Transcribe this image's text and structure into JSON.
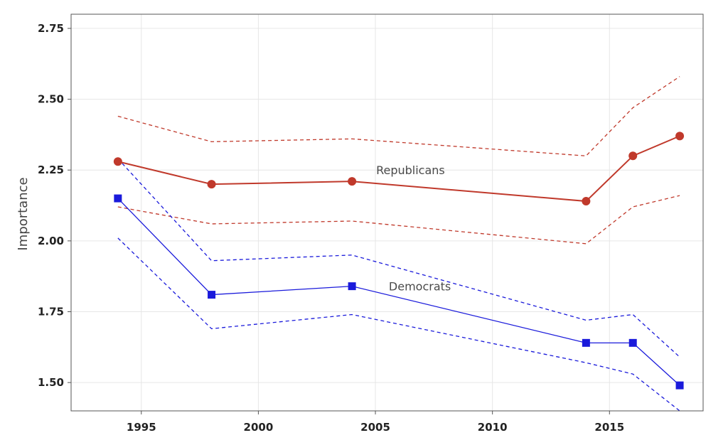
{
  "chart_data": {
    "type": "line",
    "title": "",
    "xlabel": "",
    "ylabel": "Importance",
    "xlim": [
      1992.0,
      2019.0
    ],
    "ylim": [
      1.4,
      2.8
    ],
    "x_ticks": [
      1995,
      2000,
      2005,
      2010,
      2015
    ],
    "y_ticks": [
      1.5,
      1.75,
      2.0,
      2.25,
      2.5,
      2.75
    ],
    "y_tick_labels": [
      "1.50",
      "1.75",
      "2.00",
      "2.25",
      "2.50",
      "2.75"
    ],
    "grid": true,
    "legend": "none",
    "series": [
      {
        "name": "Republicans",
        "color": "#c0392b",
        "marker": "circle",
        "x": [
          1994,
          1998,
          2004,
          2014,
          2016,
          2018
        ],
        "values": [
          2.28,
          2.2,
          2.21,
          2.14,
          2.3,
          2.37
        ],
        "ci_upper": [
          2.44,
          2.35,
          2.36,
          2.3,
          2.47,
          2.58
        ],
        "ci_lower": [
          2.12,
          2.06,
          2.07,
          1.99,
          2.12,
          2.16
        ]
      },
      {
        "name": "Democrats",
        "color": "#1a1adb",
        "marker": "square",
        "x": [
          1994,
          1998,
          2004,
          2014,
          2016,
          2018
        ],
        "values": [
          2.15,
          1.81,
          1.84,
          1.64,
          1.64,
          1.49
        ],
        "ci_upper": [
          2.29,
          1.93,
          1.95,
          1.72,
          1.74,
          1.59
        ],
        "ci_lower": [
          2.01,
          1.69,
          1.74,
          1.57,
          1.53,
          1.4
        ]
      }
    ],
    "annotations": [
      {
        "text": "Republicans",
        "x": 2006.5,
        "y": 2.25
      },
      {
        "text": "Democrats",
        "x": 2006.9,
        "y": 1.84
      }
    ]
  }
}
